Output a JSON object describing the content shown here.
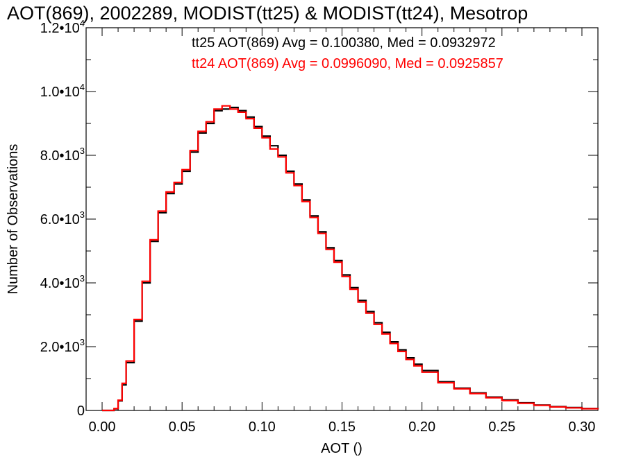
{
  "chart_data": {
    "type": "line",
    "title": "AOT(869), 2002289, MODIST(tt25) & MODIST(tt24), Mesotrop",
    "xlabel": "AOT ()",
    "ylabel": "Number of Observations",
    "xlim": [
      -0.01,
      0.31
    ],
    "ylim": [
      0,
      12000
    ],
    "xticks": [
      {
        "value": 0.0,
        "label": "0.00"
      },
      {
        "value": 0.05,
        "label": "0.05"
      },
      {
        "value": 0.1,
        "label": "0.10"
      },
      {
        "value": 0.15,
        "label": "0.15"
      },
      {
        "value": 0.2,
        "label": "0.20"
      },
      {
        "value": 0.25,
        "label": "0.25"
      },
      {
        "value": 0.3,
        "label": "0.30"
      }
    ],
    "yticks": [
      {
        "value": 0,
        "mantissa": "0",
        "exponent": ""
      },
      {
        "value": 2000,
        "mantissa": "2.0•10",
        "exponent": "3"
      },
      {
        "value": 4000,
        "mantissa": "4.0•10",
        "exponent": "3"
      },
      {
        "value": 6000,
        "mantissa": "6.0•10",
        "exponent": "3"
      },
      {
        "value": 8000,
        "mantissa": "8.0•10",
        "exponent": "3"
      },
      {
        "value": 10000,
        "mantissa": "1.0•10",
        "exponent": "4"
      },
      {
        "value": 12000,
        "mantissa": "1.2•10",
        "exponent": "4"
      }
    ],
    "annotations": [
      {
        "text": "tt25 AOT(869) Avg = 0.100380, Med = 0.0932972",
        "color": "#000000"
      },
      {
        "text": "tt24 AOT(869) Avg = 0.0996090, Med = 0.0925857",
        "color": "#ff0000"
      }
    ],
    "series": [
      {
        "color": "#000000",
        "x": [
          0.0,
          0.005,
          0.0075,
          0.01,
          0.0125,
          0.015,
          0.02,
          0.025,
          0.03,
          0.035,
          0.04,
          0.045,
          0.05,
          0.055,
          0.06,
          0.065,
          0.07,
          0.075,
          0.08,
          0.085,
          0.09,
          0.095,
          0.1,
          0.105,
          0.11,
          0.115,
          0.12,
          0.125,
          0.13,
          0.135,
          0.14,
          0.145,
          0.15,
          0.155,
          0.16,
          0.165,
          0.17,
          0.175,
          0.18,
          0.185,
          0.19,
          0.195,
          0.2,
          0.21,
          0.22,
          0.23,
          0.24,
          0.25,
          0.26,
          0.27,
          0.28,
          0.29,
          0.3,
          0.31
        ],
        "y": [
          0,
          0,
          50,
          300,
          800,
          1500,
          2800,
          4000,
          5300,
          6200,
          6800,
          7100,
          7500,
          8100,
          8700,
          9000,
          9400,
          9450,
          9500,
          9400,
          9200,
          8900,
          8600,
          8300,
          8000,
          7500,
          7100,
          6600,
          6100,
          5600,
          5100,
          4700,
          4250,
          3850,
          3450,
          3100,
          2750,
          2450,
          2150,
          1900,
          1650,
          1450,
          1250,
          900,
          700,
          550,
          420,
          330,
          240,
          170,
          120,
          90,
          60,
          40
        ]
      },
      {
        "color": "#ff0000",
        "x": [
          0.0,
          0.005,
          0.0075,
          0.01,
          0.0125,
          0.015,
          0.02,
          0.025,
          0.03,
          0.035,
          0.04,
          0.045,
          0.05,
          0.055,
          0.06,
          0.065,
          0.07,
          0.075,
          0.08,
          0.085,
          0.09,
          0.095,
          0.1,
          0.105,
          0.11,
          0.115,
          0.12,
          0.125,
          0.13,
          0.135,
          0.14,
          0.145,
          0.15,
          0.155,
          0.16,
          0.165,
          0.17,
          0.175,
          0.18,
          0.185,
          0.19,
          0.195,
          0.2,
          0.21,
          0.22,
          0.23,
          0.24,
          0.25,
          0.26,
          0.27,
          0.28,
          0.29,
          0.3,
          0.31
        ],
        "y": [
          0,
          0,
          60,
          320,
          850,
          1550,
          2850,
          4050,
          5350,
          6250,
          6850,
          7150,
          7550,
          8150,
          8750,
          9050,
          9450,
          9550,
          9450,
          9350,
          9150,
          8850,
          8550,
          8200,
          7950,
          7450,
          7050,
          6550,
          6050,
          5550,
          5050,
          4650,
          4200,
          3800,
          3400,
          3050,
          2700,
          2400,
          2100,
          1850,
          1600,
          1400,
          1200,
          870,
          680,
          530,
          400,
          310,
          225,
          160,
          110,
          80,
          55,
          35
        ]
      }
    ]
  }
}
